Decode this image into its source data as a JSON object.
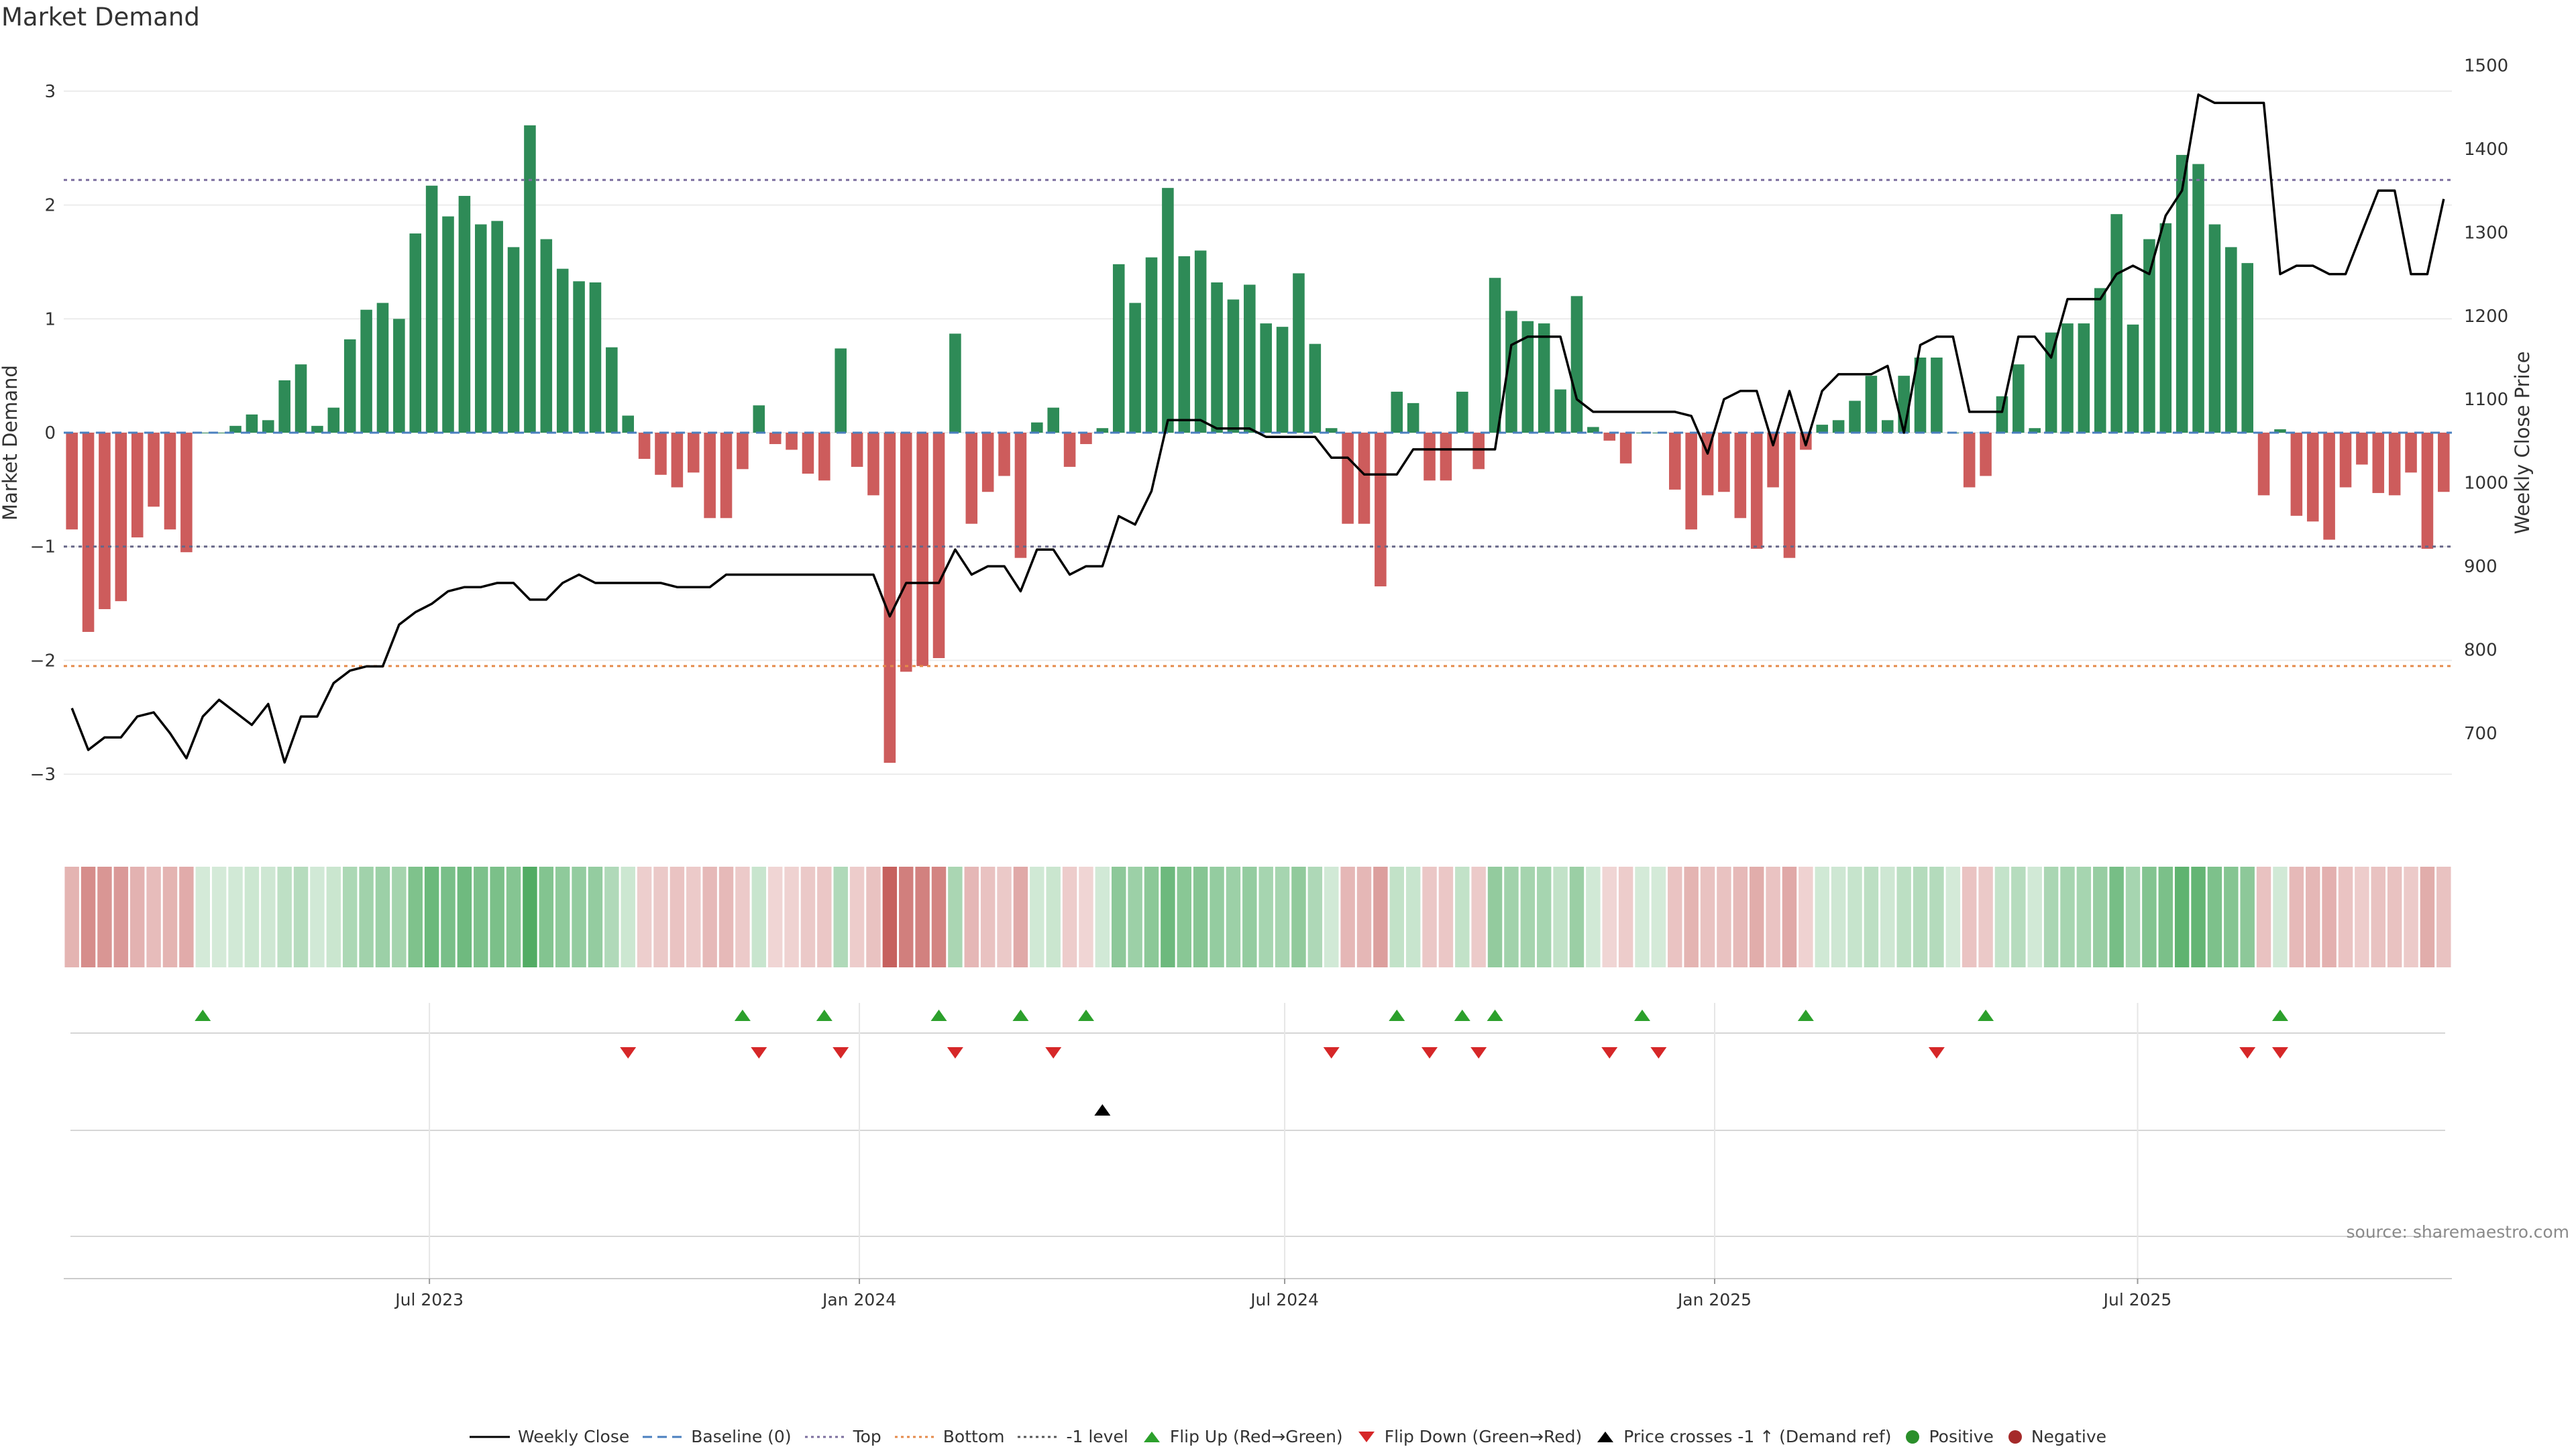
{
  "chart_data": {
    "type": "bar",
    "title": "Market Demand",
    "ylabel": "Market Demand",
    "y2label": "Weekly Close Price",
    "ylim": [
      -3.3,
      3.3
    ],
    "y2lim": [
      610,
      1510
    ],
    "yticks": [
      3,
      2,
      1,
      0,
      -1,
      -2,
      -3
    ],
    "yticklabels": [
      "3",
      "2",
      "1",
      "0",
      "−1",
      "−2",
      "−3"
    ],
    "y2ticks": [
      1500,
      1400,
      1300,
      1200,
      1100,
      1000,
      900,
      800,
      700
    ],
    "x_date_ticks": [
      {
        "date": "2023-07-01",
        "label": "Jul 2023"
      },
      {
        "date": "2024-01-01",
        "label": "Jan 2024"
      },
      {
        "date": "2024-07-01",
        "label": "Jul 2024"
      },
      {
        "date": "2025-01-01",
        "label": "Jan 2025"
      },
      {
        "date": "2025-07-01",
        "label": "Jul 2025"
      }
    ],
    "reference_levels": {
      "top": 2.22,
      "bottom": -2.05,
      "minus_one": -1.0,
      "baseline": 0
    },
    "first_week": "2023-01-29",
    "demand": [
      -0.85,
      -1.75,
      -1.55,
      -1.48,
      -0.92,
      -0.65,
      -0.85,
      -1.05,
      0,
      0,
      0.06,
      0.16,
      0.11,
      0.46,
      0.6,
      0.06,
      0.22,
      0.82,
      1.08,
      1.14,
      1.0,
      1.75,
      2.17,
      1.9,
      2.08,
      1.83,
      1.86,
      1.63,
      2.7,
      1.7,
      1.44,
      1.33,
      1.32,
      0.75,
      0.15,
      -0.23,
      -0.37,
      -0.48,
      -0.35,
      -0.75,
      -0.75,
      -0.32,
      0.24,
      -0.1,
      -0.15,
      -0.36,
      -0.42,
      0.74,
      -0.3,
      -0.55,
      -2.9,
      -2.1,
      -2.05,
      -1.98,
      0.87,
      -0.8,
      -0.52,
      -0.38,
      -1.1,
      0.09,
      0.22,
      -0.3,
      -0.1,
      0.04,
      1.48,
      1.14,
      1.54,
      2.15,
      1.55,
      1.6,
      1.32,
      1.17,
      1.3,
      0.96,
      0.93,
      1.4,
      0.78,
      0.04,
      -0.8,
      -0.8,
      -1.35,
      0.36,
      0.26,
      -0.42,
      -0.42,
      0.36,
      -0.32,
      1.36,
      1.07,
      0.98,
      0.96,
      0.38,
      1.2,
      0.05,
      -0.07,
      -0.27,
      0,
      0,
      -0.5,
      -0.85,
      -0.55,
      -0.52,
      -0.75,
      -1.02,
      -0.48,
      -1.1,
      -0.15,
      0.07,
      0.11,
      0.28,
      0.5,
      0.11,
      0.5,
      0.66,
      0.66,
      0,
      -0.48,
      -0.38,
      0.32,
      0.6,
      0.04,
      0.88,
      0.96,
      0.96,
      1.27,
      1.92,
      0.95,
      1.7,
      1.84,
      2.44,
      2.36,
      1.83,
      1.63,
      1.49,
      -0.55,
      0.03,
      -0.73,
      -0.78,
      -0.94,
      -0.48,
      -0.28,
      -0.53,
      -0.55,
      -0.35,
      -1.02,
      -0.52
    ],
    "weekly_close": [
      730,
      680,
      695,
      695,
      720,
      725,
      700,
      670,
      720,
      740,
      725,
      710,
      735,
      665,
      720,
      720,
      760,
      775,
      780,
      780,
      830,
      845,
      855,
      870,
      875,
      875,
      880,
      880,
      860,
      860,
      880,
      890,
      880,
      880,
      880,
      880,
      880,
      875,
      875,
      875,
      890,
      890,
      890,
      890,
      890,
      890,
      890,
      890,
      890,
      890,
      840,
      880,
      880,
      880,
      920,
      890,
      900,
      900,
      870,
      920,
      920,
      890,
      900,
      900,
      960,
      950,
      990,
      1075,
      1075,
      1075,
      1065,
      1065,
      1065,
      1055,
      1055,
      1055,
      1055,
      1030,
      1030,
      1010,
      1010,
      1010,
      1040,
      1040,
      1040,
      1040,
      1040,
      1040,
      1165,
      1175,
      1175,
      1175,
      1100,
      1085,
      1085,
      1085,
      1085,
      1085,
      1085,
      1080,
      1035,
      1100,
      1110,
      1110,
      1045,
      1110,
      1045,
      1110,
      1130,
      1130,
      1130,
      1140,
      1060,
      1165,
      1175,
      1175,
      1085,
      1085,
      1085,
      1175,
      1175,
      1150,
      1220,
      1220,
      1220,
      1250,
      1260,
      1250,
      1320,
      1350,
      1465,
      1455,
      1455,
      1455,
      1455,
      1250,
      1260,
      1260,
      1250,
      1250,
      1300,
      1350,
      1350,
      1250,
      1250,
      1340
    ],
    "flip_up_weeks": [
      8,
      41,
      46,
      53,
      58,
      62,
      81,
      85,
      87,
      96,
      106,
      117,
      135
    ],
    "flip_down_weeks": [
      34,
      42,
      47,
      54,
      60,
      77,
      83,
      86,
      94,
      97,
      114,
      133,
      135
    ],
    "price_cross_weeks": [
      63
    ],
    "legend": [
      "Weekly Close",
      "Baseline (0)",
      "Top",
      "Bottom",
      "-1 level",
      "Flip Up (Red→Green)",
      "Flip Down (Green→Red)",
      "Price crosses -1 ↑ (Demand ref)",
      "Positive",
      "Negative"
    ],
    "colors": {
      "positive": "#2e8b57",
      "negative": "#cd5c5c",
      "line": "#000000",
      "top": "#7b6e9e",
      "bottom": "#e58a4a",
      "baseline": "#4a7fbf",
      "flip_up": "#2ca02c",
      "flip_down": "#d62728",
      "positive_dot": "#2a8f2a",
      "negative_dot": "#a52a2a"
    }
  },
  "source": "source: sharemaestro.com"
}
